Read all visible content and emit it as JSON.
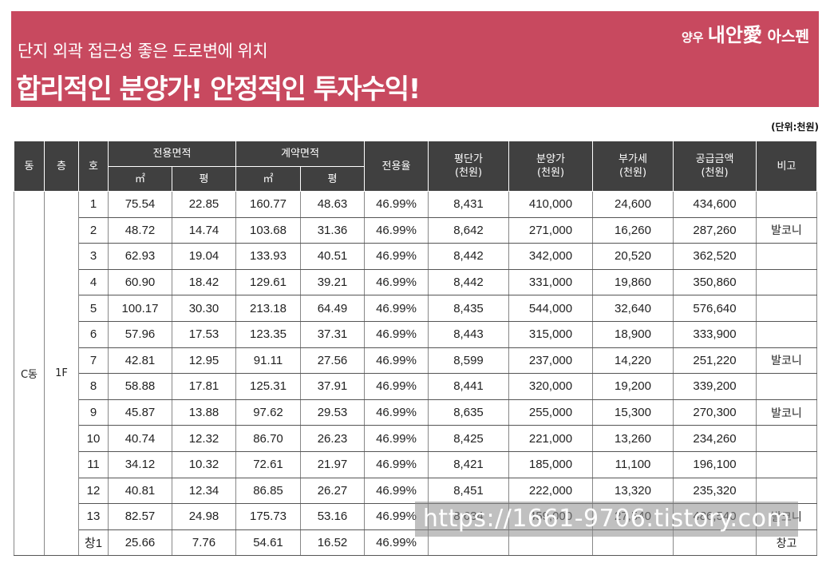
{
  "banner": {
    "subtitle": "단지 외곽 접근성 좋은 도로변에 위치",
    "title": "합리적인 분양가! 안정적인 투자수익!",
    "logo": {
      "part1": "양우 ",
      "part2": "내안愛",
      "part3": " 아스펜"
    },
    "color": "#c8495f"
  },
  "unit_note": "(단위:천원)",
  "table": {
    "headers": {
      "dong": "동",
      "floor": "층",
      "ho": "호",
      "exclusive_area": "전용면적",
      "contract_area": "계약면적",
      "sqm": "㎡",
      "pyeong": "평",
      "ratio": "전용율",
      "price_per_pyeong": "평단가\n(천원)",
      "sale_price": "분양가\n(천원)",
      "vat": "부가세\n(천원)",
      "supply_amount": "공급금액\n(천원)",
      "remarks": "비고"
    },
    "dong_value": "C동",
    "floor_value": "1F",
    "rows": [
      {
        "ho": "1",
        "ex_m2": "75.54",
        "ex_py": "22.85",
        "ct_m2": "160.77",
        "ct_py": "48.63",
        "ratio": "46.99%",
        "ppp": "8,431",
        "price": "410,000",
        "vat": "24,600",
        "total": "434,600",
        "note": ""
      },
      {
        "ho": "2",
        "ex_m2": "48.72",
        "ex_py": "14.74",
        "ct_m2": "103.68",
        "ct_py": "31.36",
        "ratio": "46.99%",
        "ppp": "8,642",
        "price": "271,000",
        "vat": "16,260",
        "total": "287,260",
        "note": "발코니"
      },
      {
        "ho": "3",
        "ex_m2": "62.93",
        "ex_py": "19.04",
        "ct_m2": "133.93",
        "ct_py": "40.51",
        "ratio": "46.99%",
        "ppp": "8,442",
        "price": "342,000",
        "vat": "20,520",
        "total": "362,520",
        "note": ""
      },
      {
        "ho": "4",
        "ex_m2": "60.90",
        "ex_py": "18.42",
        "ct_m2": "129.61",
        "ct_py": "39.21",
        "ratio": "46.99%",
        "ppp": "8,442",
        "price": "331,000",
        "vat": "19,860",
        "total": "350,860",
        "note": ""
      },
      {
        "ho": "5",
        "ex_m2": "100.17",
        "ex_py": "30.30",
        "ct_m2": "213.18",
        "ct_py": "64.49",
        "ratio": "46.99%",
        "ppp": "8,435",
        "price": "544,000",
        "vat": "32,640",
        "total": "576,640",
        "note": ""
      },
      {
        "ho": "6",
        "ex_m2": "57.96",
        "ex_py": "17.53",
        "ct_m2": "123.35",
        "ct_py": "37.31",
        "ratio": "46.99%",
        "ppp": "8,443",
        "price": "315,000",
        "vat": "18,900",
        "total": "333,900",
        "note": ""
      },
      {
        "ho": "7",
        "ex_m2": "42.81",
        "ex_py": "12.95",
        "ct_m2": "91.11",
        "ct_py": "27.56",
        "ratio": "46.99%",
        "ppp": "8,599",
        "price": "237,000",
        "vat": "14,220",
        "total": "251,220",
        "note": "발코니"
      },
      {
        "ho": "8",
        "ex_m2": "58.88",
        "ex_py": "17.81",
        "ct_m2": "125.31",
        "ct_py": "37.91",
        "ratio": "46.99%",
        "ppp": "8,441",
        "price": "320,000",
        "vat": "19,200",
        "total": "339,200",
        "note": ""
      },
      {
        "ho": "9",
        "ex_m2": "45.87",
        "ex_py": "13.88",
        "ct_m2": "97.62",
        "ct_py": "29.53",
        "ratio": "46.99%",
        "ppp": "8,635",
        "price": "255,000",
        "vat": "15,300",
        "total": "270,300",
        "note": "발코니"
      },
      {
        "ho": "10",
        "ex_m2": "40.74",
        "ex_py": "12.32",
        "ct_m2": "86.70",
        "ct_py": "26.23",
        "ratio": "46.99%",
        "ppp": "8,425",
        "price": "221,000",
        "vat": "13,260",
        "total": "234,260",
        "note": ""
      },
      {
        "ho": "11",
        "ex_m2": "34.12",
        "ex_py": "10.32",
        "ct_m2": "72.61",
        "ct_py": "21.97",
        "ratio": "46.99%",
        "ppp": "8,421",
        "price": "185,000",
        "vat": "11,100",
        "total": "196,100",
        "note": ""
      },
      {
        "ho": "12",
        "ex_m2": "40.81",
        "ex_py": "12.34",
        "ct_m2": "86.85",
        "ct_py": "26.27",
        "ratio": "46.99%",
        "ppp": "8,451",
        "price": "222,000",
        "vat": "13,320",
        "total": "235,320",
        "note": ""
      },
      {
        "ho": "13",
        "ex_m2": "82.57",
        "ex_py": "24.98",
        "ct_m2": "175.73",
        "ct_py": "53.16",
        "ratio": "46.99%",
        "ppp": "8,634",
        "price": "459,000",
        "vat": "27,540",
        "total": "486,540",
        "note": "발코니"
      },
      {
        "ho": "창1",
        "ex_m2": "25.66",
        "ex_py": "7.76",
        "ct_m2": "54.61",
        "ct_py": "16.52",
        "ratio": "46.99%",
        "ppp": "",
        "price": "",
        "vat": "",
        "total": "",
        "note": "창고"
      }
    ]
  },
  "watermark": "https://1661-9706.tistory.com"
}
